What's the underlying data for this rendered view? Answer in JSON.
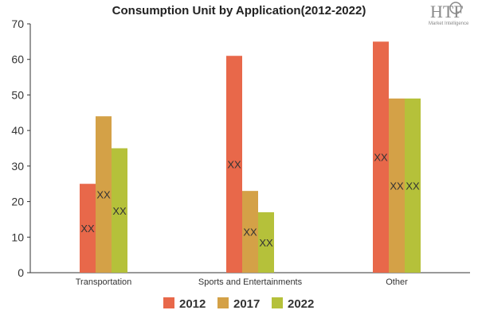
{
  "logo": {
    "text": "HTF",
    "subtitle": "Market Intelligence"
  },
  "chart_data": {
    "type": "bar",
    "title": "Consumption Unit by  Application(2012-2022)",
    "xlabel": "",
    "ylabel": "",
    "categories": [
      "Transportation",
      "Sports and Entertainments",
      "Other"
    ],
    "series": [
      {
        "name": "2012",
        "color": "#e8684a",
        "values": [
          25,
          61,
          65
        ],
        "labels": [
          "XX",
          "XX",
          "XX"
        ]
      },
      {
        "name": "2017",
        "color": "#d4a147",
        "values": [
          44,
          23,
          49
        ],
        "labels": [
          "XX",
          "XX",
          "XX"
        ]
      },
      {
        "name": "2022",
        "color": "#b5c13a",
        "values": [
          35,
          17,
          49
        ],
        "labels": [
          "XX",
          "XX",
          "XX"
        ]
      }
    ],
    "ylim": [
      0,
      70
    ],
    "yticks": [
      0,
      10,
      20,
      30,
      40,
      50,
      60,
      70
    ],
    "grid": false,
    "legend_position": "bottom"
  }
}
